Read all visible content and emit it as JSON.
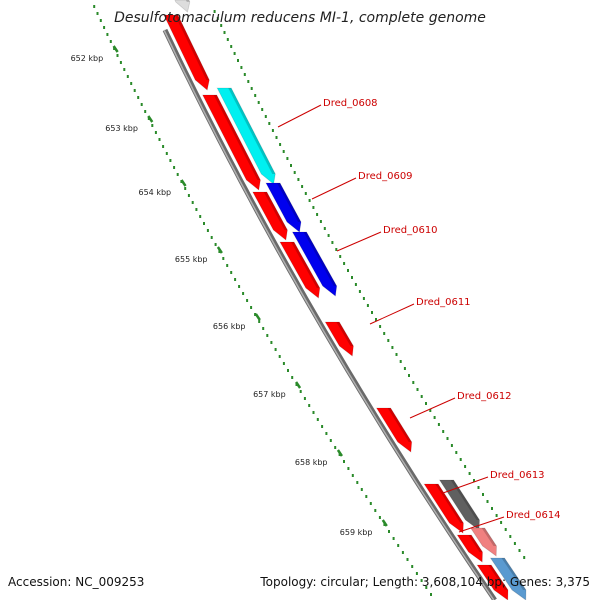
{
  "title": "Desulfotomaculum reducens MI-1, complete genome",
  "accession": "Accession: NC_009253",
  "topology": "Topology: circular; Length: 3,608,104 bp; Genes: 3,375",
  "colors": {
    "forward_gene": "#ff0000",
    "dred_0608": "#00f0f0",
    "dred_0609_0610": "#0000ee",
    "dred_0613": "#606060",
    "dred_0614": "#f08080",
    "extra_gene": "#5a9ad0",
    "label": "#cc0000",
    "tick": "#2a8a2a",
    "backbone": "#888888"
  },
  "kbp_ticks": [
    "652 kbp",
    "653 kbp",
    "654 kbp",
    "655 kbp",
    "656 kbp",
    "657 kbp",
    "658 kbp",
    "659 kbp"
  ],
  "gene_labels": [
    "Dred_0608",
    "Dred_0609",
    "Dred_0610",
    "Dred_0611",
    "Dred_0612",
    "Dred_0613",
    "Dred_0614"
  ]
}
